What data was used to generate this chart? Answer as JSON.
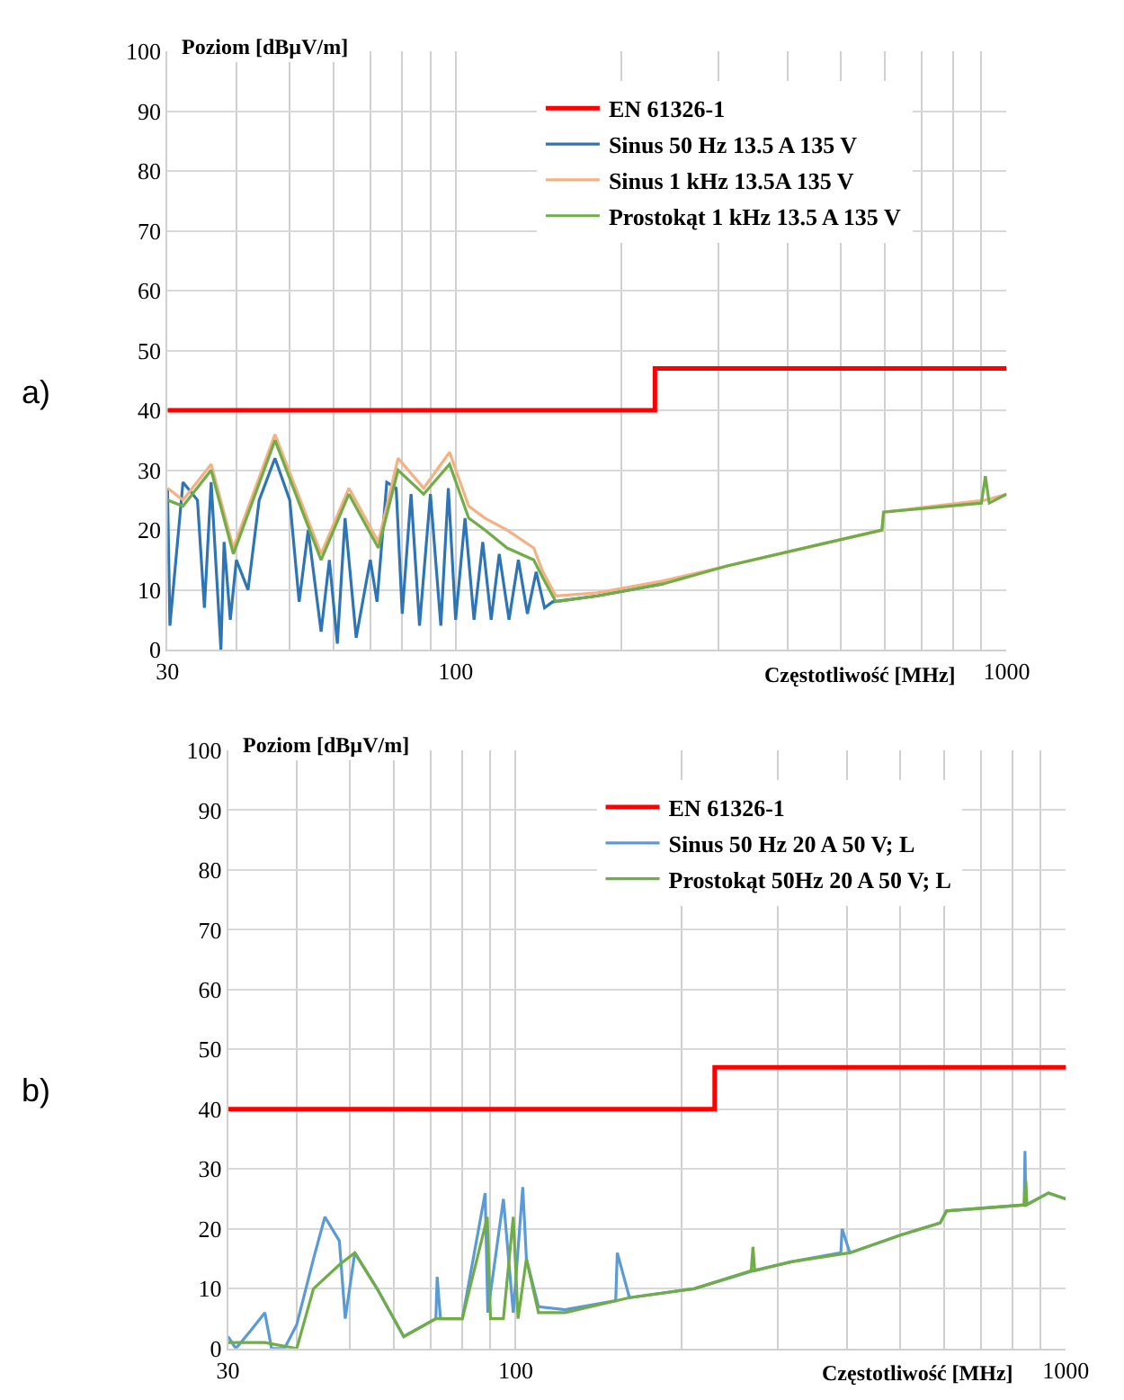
{
  "chart_data": [
    {
      "type": "line",
      "xlabel": "Częstotliwość [MHz]",
      "ylabel": "Poziom [dBµV/m]",
      "annotations": [
        "a)"
      ],
      "log": "x",
      "grid": true,
      "legend": "top right",
      "xlim": [
        30,
        1000
      ],
      "ylim": [
        0,
        100
      ],
      "xticks": [
        30,
        {
          "value": 40,
          "label": null
        },
        {
          "value": 50,
          "label": null
        },
        {
          "value": 60,
          "label": null
        },
        {
          "value": 70,
          "label": null
        },
        {
          "value": 80,
          "label": null
        },
        {
          "value": 90,
          "label": null
        },
        100,
        {
          "value": 200,
          "label": null
        },
        {
          "value": 300,
          "label": null
        },
        {
          "value": 400,
          "label": null
        },
        {
          "value": 500,
          "label": null
        },
        {
          "value": 600,
          "label": null
        },
        {
          "value": 700,
          "label": null
        },
        {
          "value": 800,
          "label": null
        },
        {
          "value": 900,
          "label": null
        },
        1000
      ],
      "yticks": [
        0,
        10,
        20,
        30,
        40,
        50,
        60,
        70,
        80,
        90,
        100
      ],
      "series": [
        {
          "name": "EN 61326-1",
          "type": "step",
          "color": "#ff0000",
          "x": [
            30,
            230,
            1000
          ],
          "values": [
            40,
            47,
            47
          ]
        },
        {
          "name": "Sinus 50 Hz 13.5 A 135 V",
          "color": "#2e75b6",
          "x": [
            30,
            30.3,
            32,
            34,
            35,
            36,
            37.5,
            38,
            39,
            40,
            42,
            44,
            47,
            50,
            52,
            54,
            57,
            59,
            61,
            63,
            66,
            70,
            72,
            75,
            78,
            80,
            83,
            86,
            90,
            94,
            97,
            100,
            104,
            108,
            112,
            116,
            120,
            125,
            130,
            135,
            140,
            145,
            150,
            181,
            238
          ],
          "values": [
            27,
            4,
            28,
            25,
            7,
            28,
            0,
            18,
            5,
            15,
            10,
            25,
            32,
            25,
            8,
            20,
            3,
            15,
            1,
            22,
            2,
            15,
            8,
            28,
            27,
            6,
            26,
            4,
            26,
            4,
            27,
            5,
            22,
            5,
            18,
            5,
            16,
            5,
            15,
            6,
            13,
            7,
            8,
            9,
            11
          ]
        },
        {
          "name": "Sinus 1 kHz 13.5A 135 V",
          "color": "#f4b183",
          "x": [
            30,
            32,
            36,
            39.5,
            47,
            57,
            64,
            72.4,
            78.6,
            87.5,
            97.5,
            105.6,
            113,
            124,
            138.6,
            144,
            152,
            181,
            238,
            311,
            407,
            594,
            598,
            915,
            1000
          ],
          "values": [
            27,
            25,
            31,
            17,
            36,
            16,
            27,
            18,
            32,
            27,
            33,
            24,
            22,
            20,
            17,
            13,
            9,
            9.5,
            11.5,
            14,
            16.5,
            20,
            23,
            25,
            26
          ]
        },
        {
          "name": "Prostokąt 1 kHz 13.5 A 135 V",
          "color": "#70ad47",
          "x": [
            30,
            32,
            36,
            39.5,
            47,
            57,
            64,
            72.4,
            78.6,
            87.5,
            97.5,
            105.6,
            113,
            124,
            138.6,
            144,
            152,
            181,
            238,
            311,
            407,
            594,
            598,
            900,
            915,
            930,
            1000
          ],
          "values": [
            25,
            24,
            30,
            16,
            35,
            15,
            26,
            17,
            30,
            26,
            31,
            22,
            20,
            17,
            15,
            12,
            8,
            9,
            11,
            14,
            16.5,
            20,
            23,
            24.5,
            29,
            24.5,
            26
          ]
        }
      ]
    },
    {
      "type": "line",
      "xlabel": "Częstotliwość [MHz]",
      "ylabel": "Poziom [dBµV/m]",
      "annotations": [
        "b)"
      ],
      "log": "x",
      "grid": true,
      "legend": "top right",
      "xlim": [
        30,
        1000
      ],
      "ylim": [
        0,
        100
      ],
      "xticks": [
        30,
        {
          "value": 40,
          "label": null
        },
        {
          "value": 50,
          "label": null
        },
        {
          "value": 60,
          "label": null
        },
        {
          "value": 70,
          "label": null
        },
        {
          "value": 80,
          "label": null
        },
        {
          "value": 90,
          "label": null
        },
        100,
        {
          "value": 200,
          "label": null
        },
        {
          "value": 300,
          "label": null
        },
        {
          "value": 400,
          "label": null
        },
        {
          "value": 500,
          "label": null
        },
        {
          "value": 600,
          "label": null
        },
        {
          "value": 700,
          "label": null
        },
        {
          "value": 800,
          "label": null
        },
        {
          "value": 900,
          "label": null
        },
        1000
      ],
      "yticks": [
        0,
        10,
        20,
        30,
        40,
        50,
        60,
        70,
        80,
        90,
        100
      ],
      "series": [
        {
          "name": "EN 61326-1",
          "type": "step",
          "color": "#ff0000",
          "x": [
            30,
            230,
            1000
          ],
          "values": [
            40,
            47,
            47
          ]
        },
        {
          "name": "Sinus 50 Hz 20 A 50 V; L",
          "color": "#5b9bd5",
          "x": [
            30,
            31,
            33,
            35,
            36,
            38,
            40,
            42.9,
            45,
            47.8,
            49,
            51,
            56,
            62.6,
            71.6,
            72,
            73,
            80,
            88,
            89,
            95,
            99,
            103,
            104.6,
            110,
            123,
            152,
            153,
            161,
            211,
            270,
            317,
            390,
            392,
            405,
            502,
            591,
            607,
            840,
            843,
            846,
            930,
            1000
          ],
          "values": [
            2,
            0,
            3,
            6,
            0,
            0,
            4,
            15,
            22,
            18,
            5,
            16,
            10,
            2,
            5,
            12,
            5,
            5,
            26,
            6,
            25,
            6,
            27,
            15,
            7,
            6.5,
            8,
            16,
            8.5,
            10,
            13,
            14.5,
            16,
            20,
            16,
            19,
            21,
            23,
            24,
            33,
            24,
            26,
            25
          ]
        },
        {
          "name": "Prostokąt 50Hz 20 A 50 V; L",
          "color": "#70ad47",
          "x": [
            30,
            35,
            40,
            42.9,
            47.8,
            51,
            56,
            62.6,
            71.6,
            80,
            88.8,
            90,
            95,
            99,
            101,
            104.6,
            110,
            123,
            161,
            211,
            268,
            270,
            272,
            317,
            405,
            502,
            591,
            607,
            840,
            846,
            850,
            930,
            1000
          ],
          "values": [
            1,
            1,
            0,
            10,
            14,
            16,
            10,
            2,
            5,
            5,
            22,
            5,
            5,
            22,
            5,
            15,
            6,
            6,
            8.5,
            10,
            13,
            17,
            13,
            14.5,
            16,
            19,
            21,
            23,
            24,
            28,
            24,
            26,
            25
          ]
        }
      ]
    }
  ]
}
